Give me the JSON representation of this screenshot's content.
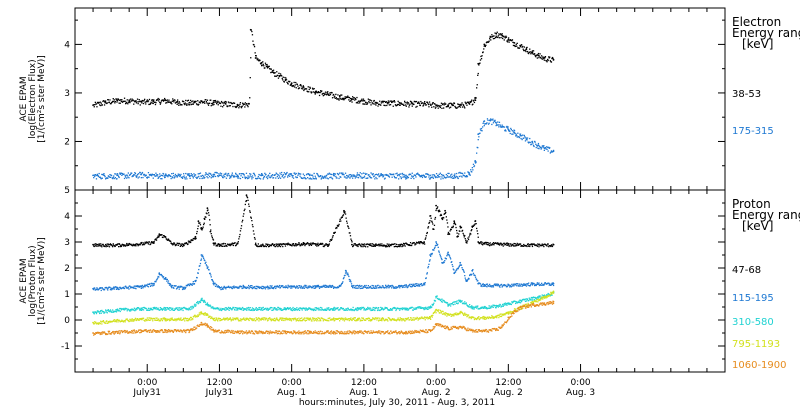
{
  "chart_data": [
    {
      "panel": "electron",
      "type": "scatter",
      "ylabel_lines": [
        "ACE EPAM",
        "log(Electron Flux)",
        "[1/(cm²s ster MeV)]"
      ],
      "ylim": [
        1.0,
        4.75
      ],
      "yticks": [
        2,
        3,
        4
      ],
      "legend": {
        "title_lines": [
          "Electron",
          "Energy range",
          "[keV]"
        ],
        "placement": "right"
      },
      "series": [
        {
          "name": "38-53",
          "color": "#000000",
          "x": [
            -9,
            -7,
            -5,
            -3,
            -1,
            1,
            3,
            5,
            7,
            9,
            11,
            13,
            15,
            16.9,
            17.2,
            18,
            19,
            20,
            21,
            22,
            23,
            24,
            26,
            28,
            30,
            32,
            34,
            36,
            38,
            40,
            42,
            44,
            46,
            48,
            50,
            52,
            53.5,
            54.5,
            55,
            56,
            57,
            58,
            59,
            60,
            61,
            62,
            63,
            64,
            65,
            66,
            67.5
          ],
          "y": [
            2.75,
            2.82,
            2.85,
            2.85,
            2.82,
            2.83,
            2.85,
            2.82,
            2.8,
            2.83,
            2.8,
            2.78,
            2.76,
            2.78,
            4.3,
            3.72,
            3.62,
            3.52,
            3.42,
            3.35,
            3.27,
            3.2,
            3.12,
            3.03,
            2.98,
            2.92,
            2.88,
            2.84,
            2.8,
            2.8,
            2.79,
            2.78,
            2.78,
            2.75,
            2.75,
            2.75,
            2.78,
            2.9,
            3.6,
            4.0,
            4.15,
            4.22,
            4.18,
            4.1,
            4.03,
            3.97,
            3.9,
            3.83,
            3.77,
            3.72,
            3.68
          ]
        },
        {
          "name": "175-315",
          "color": "#1e78d2",
          "x": [
            -9,
            -5,
            -1,
            3,
            7,
            11,
            15,
            19,
            23,
            27,
            31,
            35,
            39,
            43,
            47,
            51,
            53.5,
            54.5,
            55,
            56,
            57,
            58,
            59,
            60,
            61,
            62,
            63,
            64,
            65,
            66,
            67.5
          ],
          "y": [
            1.3,
            1.3,
            1.32,
            1.3,
            1.3,
            1.32,
            1.3,
            1.3,
            1.32,
            1.3,
            1.3,
            1.31,
            1.3,
            1.3,
            1.3,
            1.3,
            1.35,
            1.6,
            2.15,
            2.42,
            2.43,
            2.38,
            2.3,
            2.25,
            2.18,
            2.12,
            2.05,
            1.98,
            1.92,
            1.86,
            1.8
          ]
        }
      ]
    },
    {
      "panel": "proton",
      "type": "scatter",
      "ylabel_lines": [
        "ACE EPAM",
        "log(Proton Flux)",
        "[1/(cm²s ster MeV)]"
      ],
      "ylim": [
        -2.0,
        5.0
      ],
      "yticks": [
        -1,
        0,
        1,
        2,
        3,
        4,
        5
      ],
      "legend": {
        "title_lines": [
          "Proton",
          "Energy range",
          "[keV]"
        ],
        "placement": "right"
      },
      "series": [
        {
          "name": "47-68",
          "color": "#000000",
          "x": [
            -9,
            -5,
            -1,
            1,
            2,
            3,
            4,
            6,
            8,
            8.5,
            9,
            9.5,
            10,
            10.5,
            11,
            12,
            15,
            16.5,
            18,
            22,
            26,
            30,
            32.7,
            34,
            38,
            42,
            46,
            47,
            47.5,
            48,
            49,
            49.5,
            50,
            51,
            51.5,
            52,
            53,
            54,
            54.5,
            55,
            56,
            60,
            64,
            67.5
          ],
          "y": [
            2.9,
            2.9,
            2.95,
            3.0,
            3.3,
            3.2,
            2.95,
            2.9,
            3.2,
            3.8,
            3.5,
            3.9,
            4.3,
            3.4,
            2.95,
            2.9,
            2.95,
            4.8,
            2.9,
            2.9,
            2.95,
            2.9,
            4.2,
            2.9,
            2.9,
            2.9,
            3.0,
            4.0,
            3.5,
            4.4,
            3.9,
            4.2,
            3.3,
            3.8,
            3.2,
            3.6,
            3.0,
            3.6,
            3.8,
            3.0,
            2.95,
            2.92,
            2.9,
            2.9
          ]
        },
        {
          "name": "115-195",
          "color": "#1e78d2",
          "x": [
            -9,
            -5,
            -1,
            1,
            2,
            3,
            4,
            6,
            8,
            9,
            10,
            11,
            12,
            16,
            20,
            24,
            28,
            32,
            33,
            34,
            38,
            42,
            46,
            47,
            48,
            49,
            50,
            51,
            52,
            53,
            54,
            55,
            56,
            60,
            64,
            67.5
          ],
          "y": [
            1.2,
            1.25,
            1.3,
            1.4,
            1.8,
            1.6,
            1.3,
            1.25,
            1.5,
            2.5,
            2.0,
            1.4,
            1.25,
            1.3,
            1.28,
            1.3,
            1.3,
            1.3,
            1.9,
            1.3,
            1.3,
            1.3,
            1.4,
            2.5,
            3.0,
            2.2,
            2.6,
            1.8,
            2.2,
            1.5,
            1.9,
            1.4,
            1.35,
            1.35,
            1.4,
            1.4
          ]
        },
        {
          "name": "310-580",
          "color": "#20d2d2",
          "x": [
            -9,
            -5,
            -1,
            3,
            7,
            9,
            10,
            11,
            15,
            19,
            23,
            27,
            31,
            35,
            39,
            43,
            47,
            48,
            50,
            52,
            54,
            56,
            58,
            60,
            62,
            64,
            66,
            67.5
          ],
          "y": [
            0.3,
            0.4,
            0.45,
            0.45,
            0.45,
            0.8,
            0.6,
            0.45,
            0.45,
            0.45,
            0.45,
            0.45,
            0.45,
            0.45,
            0.45,
            0.45,
            0.5,
            0.9,
            0.6,
            0.75,
            0.5,
            0.5,
            0.55,
            0.65,
            0.75,
            0.85,
            0.95,
            1.05
          ]
        },
        {
          "name": "795-1193",
          "color": "#d2e11e",
          "x": [
            -9,
            -5,
            -1,
            3,
            7,
            9,
            10,
            11,
            15,
            19,
            23,
            27,
            31,
            35,
            39,
            43,
            47,
            48,
            50,
            52,
            54,
            56,
            58,
            60,
            62,
            64,
            66,
            67.5
          ],
          "y": [
            -0.1,
            0.0,
            0.05,
            0.05,
            0.05,
            0.3,
            0.2,
            0.05,
            0.05,
            0.05,
            0.05,
            0.05,
            0.05,
            0.05,
            0.05,
            0.05,
            0.1,
            0.4,
            0.2,
            0.3,
            0.1,
            0.1,
            0.15,
            0.3,
            0.5,
            0.7,
            0.9,
            1.1
          ]
        },
        {
          "name": "1060-1900",
          "color": "#e68c1e",
          "x": [
            -9,
            -5,
            -1,
            3,
            7,
            9,
            10,
            11,
            15,
            19,
            23,
            27,
            31,
            35,
            39,
            43,
            47,
            48,
            50,
            52,
            54,
            56,
            58,
            59,
            60,
            61,
            62,
            64,
            66,
            67.5
          ],
          "y": [
            -0.5,
            -0.45,
            -0.4,
            -0.4,
            -0.4,
            -0.1,
            -0.2,
            -0.4,
            -0.45,
            -0.45,
            -0.45,
            -0.45,
            -0.45,
            -0.45,
            -0.45,
            -0.45,
            -0.4,
            -0.15,
            -0.3,
            -0.25,
            -0.4,
            -0.4,
            -0.35,
            -0.2,
            0.1,
            0.35,
            0.5,
            0.6,
            0.65,
            0.7
          ]
        }
      ]
    }
  ],
  "x_axis": {
    "range": [
      -12,
      96
    ],
    "ticks": [
      {
        "x": 0,
        "label": "0:00",
        "sublabel": "July31"
      },
      {
        "x": 12,
        "label": "12:00",
        "sublabel": "July31"
      },
      {
        "x": 24,
        "label": "0:00",
        "sublabel": "Aug. 1"
      },
      {
        "x": 36,
        "label": "12:00",
        "sublabel": "Aug. 1"
      },
      {
        "x": 48,
        "label": "0:00",
        "sublabel": "Aug. 2"
      },
      {
        "x": 60,
        "label": "12:00",
        "sublabel": "Aug. 2"
      },
      {
        "x": 72,
        "label": "0:00",
        "sublabel": "Aug. 3"
      }
    ],
    "minor_step": 3,
    "title": "hours:minutes, July 30, 2011 - Aug. 3, 2011"
  }
}
